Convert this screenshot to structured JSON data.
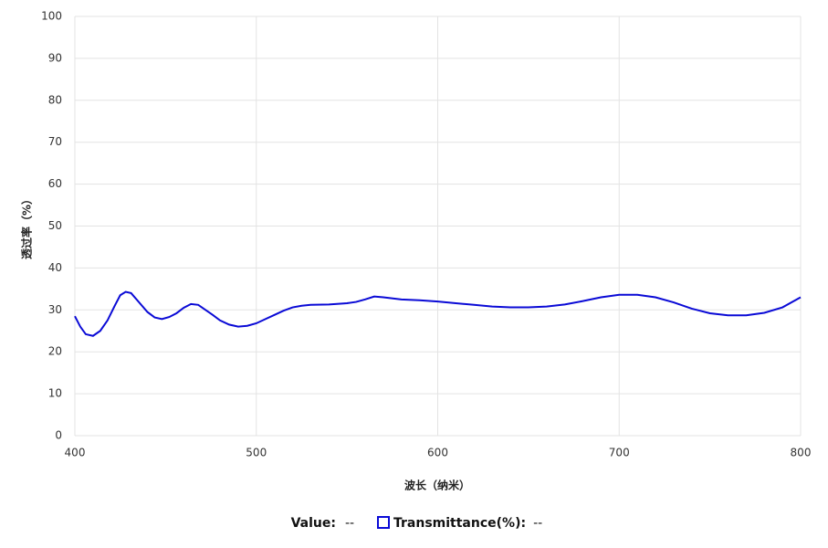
{
  "chart_data": {
    "type": "line",
    "x_label": "波长（纳米）",
    "y_label": "透过率（%）",
    "x": [
      400,
      403,
      406,
      410,
      414,
      418,
      422,
      425,
      428,
      431,
      435,
      440,
      444,
      448,
      452,
      456,
      460,
      464,
      468,
      472,
      476,
      480,
      485,
      490,
      495,
      500,
      505,
      510,
      515,
      520,
      525,
      530,
      540,
      550,
      555,
      560,
      565,
      570,
      580,
      590,
      600,
      610,
      620,
      630,
      640,
      650,
      660,
      670,
      680,
      690,
      700,
      710,
      720,
      730,
      740,
      750,
      760,
      770,
      780,
      790,
      800
    ],
    "series": [
      {
        "name": "Transmittance(%):",
        "color": "#0a0ad6",
        "readout": "--",
        "values": [
          28.5,
          26,
          24.2,
          23.8,
          25,
          27.5,
          31,
          33.5,
          34.3,
          34,
          32,
          29.5,
          28.2,
          27.8,
          28.3,
          29.2,
          30.5,
          31.4,
          31.2,
          30,
          28.8,
          27.5,
          26.5,
          26,
          26.2,
          26.8,
          27.8,
          28.8,
          29.8,
          30.6,
          31,
          31.2,
          31.3,
          31.6,
          31.9,
          32.5,
          33.2,
          33,
          32.5,
          32.3,
          32,
          31.6,
          31.2,
          30.8,
          30.6,
          30.6,
          30.8,
          31.3,
          32.1,
          33,
          33.6,
          33.6,
          33,
          31.8,
          30.3,
          29.2,
          28.7,
          28.7,
          29.3,
          30.6,
          33
        ]
      }
    ],
    "readout": {
      "label": "Value:",
      "value": "--"
    },
    "xlim": [
      400,
      800
    ],
    "xticks": [
      400,
      500,
      600,
      700,
      800
    ],
    "ylim": [
      0,
      100
    ],
    "yticks": [
      0,
      10,
      20,
      30,
      40,
      50,
      60,
      70,
      80,
      90,
      100
    ],
    "grid": true
  }
}
